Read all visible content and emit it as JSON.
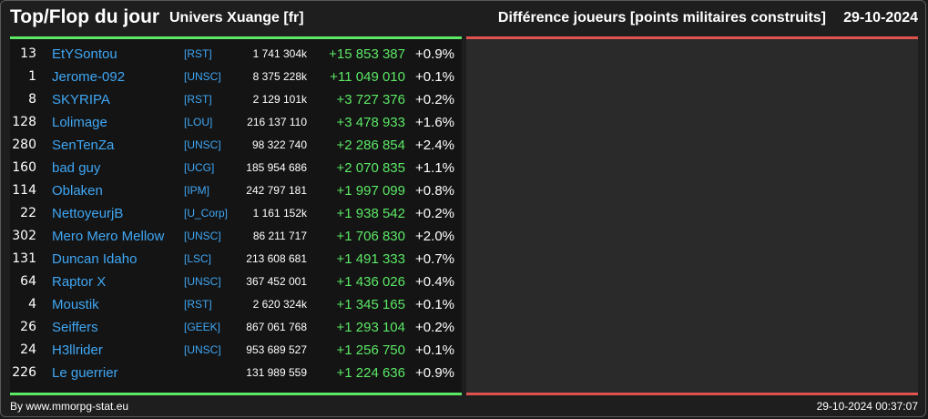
{
  "header": {
    "title": "Top/Flop du jour",
    "universe": "Univers Xuange [fr]",
    "metric": "Différence joueurs [points militaires construits]",
    "date": "29-10-2024"
  },
  "colors": {
    "positive": "#5be865",
    "negative": "#e0524e",
    "link": "#3fa7f5"
  },
  "top": [
    {
      "rank": "13",
      "name": "EtYSontou",
      "ally": "[RST]",
      "points": "1 741 304k",
      "diff": "+15 853 387",
      "pct": "+0.9%"
    },
    {
      "rank": "1",
      "name": "Jerome-092",
      "ally": "[UNSC]",
      "points": "8 375 228k",
      "diff": "+11 049 010",
      "pct": "+0.1%"
    },
    {
      "rank": "8",
      "name": "SKYRIPA",
      "ally": "[RST]",
      "points": "2 129 101k",
      "diff": "+3 727 376",
      "pct": "+0.2%"
    },
    {
      "rank": "128",
      "name": "Lolimage",
      "ally": "[LOU]",
      "points": "216 137 110",
      "diff": "+3 478 933",
      "pct": "+1.6%"
    },
    {
      "rank": "280",
      "name": "SenTenZa",
      "ally": "[UNSC]",
      "points": "98 322 740",
      "diff": "+2 286 854",
      "pct": "+2.4%"
    },
    {
      "rank": "160",
      "name": "bad guy",
      "ally": "[UCG]",
      "points": "185 954 686",
      "diff": "+2 070 835",
      "pct": "+1.1%"
    },
    {
      "rank": "114",
      "name": "Oblaken",
      "ally": "[IPM]",
      "points": "242 797 181",
      "diff": "+1 997 099",
      "pct": "+0.8%"
    },
    {
      "rank": "22",
      "name": "NettoyeurjB",
      "ally": "[U_Corp]",
      "points": "1 161 152k",
      "diff": "+1 938 542",
      "pct": "+0.2%"
    },
    {
      "rank": "302",
      "name": "Mero Mero Mellow",
      "ally": "[UNSC]",
      "points": "86 211 717",
      "diff": "+1 706 830",
      "pct": "+2.0%"
    },
    {
      "rank": "131",
      "name": "Duncan Idaho",
      "ally": "[LSC]",
      "points": "213 608 681",
      "diff": "+1 491 333",
      "pct": "+0.7%"
    },
    {
      "rank": "64",
      "name": "Raptor X",
      "ally": "[UNSC]",
      "points": "367 452 001",
      "diff": "+1 436 026",
      "pct": "+0.4%"
    },
    {
      "rank": "4",
      "name": "Moustik",
      "ally": "[RST]",
      "points": "2 620 324k",
      "diff": "+1 345 165",
      "pct": "+0.1%"
    },
    {
      "rank": "26",
      "name": "Seiffers",
      "ally": "[GEEK]",
      "points": "867 061 768",
      "diff": "+1 293 104",
      "pct": "+0.2%"
    },
    {
      "rank": "24",
      "name": "H3llrider",
      "ally": "[UNSC]",
      "points": "953 689 527",
      "diff": "+1 256 750",
      "pct": "+0.1%"
    },
    {
      "rank": "226",
      "name": "Le guerrier",
      "ally": "",
      "points": "131 989 559",
      "diff": "+1 224 636",
      "pct": "+0.9%"
    }
  ],
  "footer": {
    "credit": "By www.mmorpg-stat.eu",
    "timestamp": "29-10-2024 00:37:07"
  }
}
